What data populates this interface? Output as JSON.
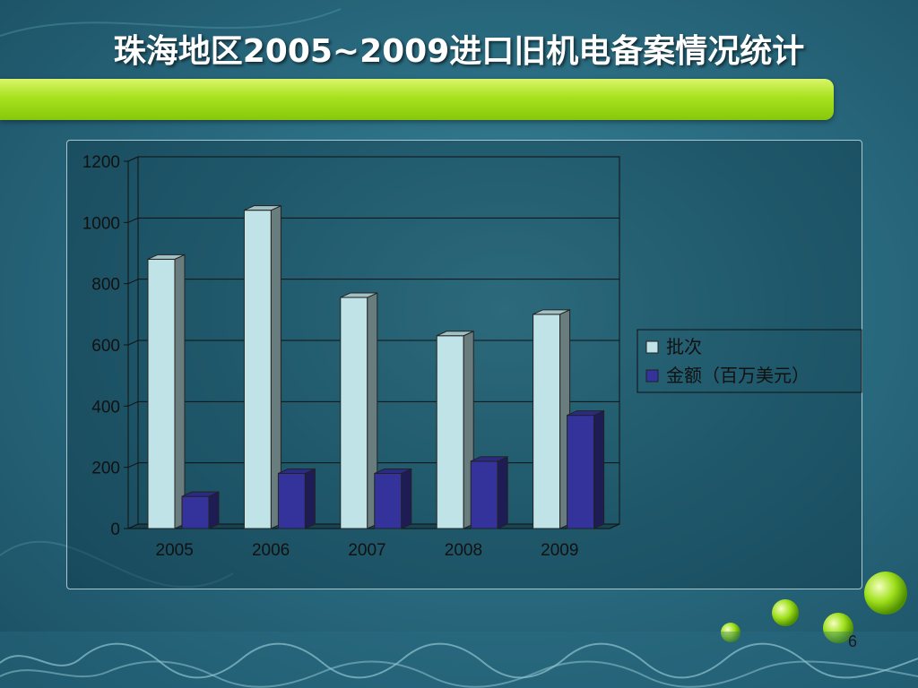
{
  "slide": {
    "title": "珠海地区2005~2009进口旧机电备案情况统计",
    "page_number": "6"
  },
  "colors": {
    "series_1": "#bfe3e6",
    "series_2": "#34339b",
    "banner": "#a8e21e"
  },
  "chart_data": {
    "type": "bar",
    "categories": [
      "2005",
      "2006",
      "2007",
      "2008",
      "2009"
    ],
    "series": [
      {
        "name": "批次",
        "values": [
          880,
          1040,
          755,
          630,
          700
        ]
      },
      {
        "name": "金额（百万美元）",
        "values": [
          105,
          180,
          180,
          220,
          370
        ]
      }
    ],
    "yticks": [
      "0",
      "200",
      "400",
      "600",
      "800",
      "1000",
      "1200"
    ],
    "ylim": [
      0,
      1200
    ],
    "grid": true,
    "legend": "right"
  }
}
